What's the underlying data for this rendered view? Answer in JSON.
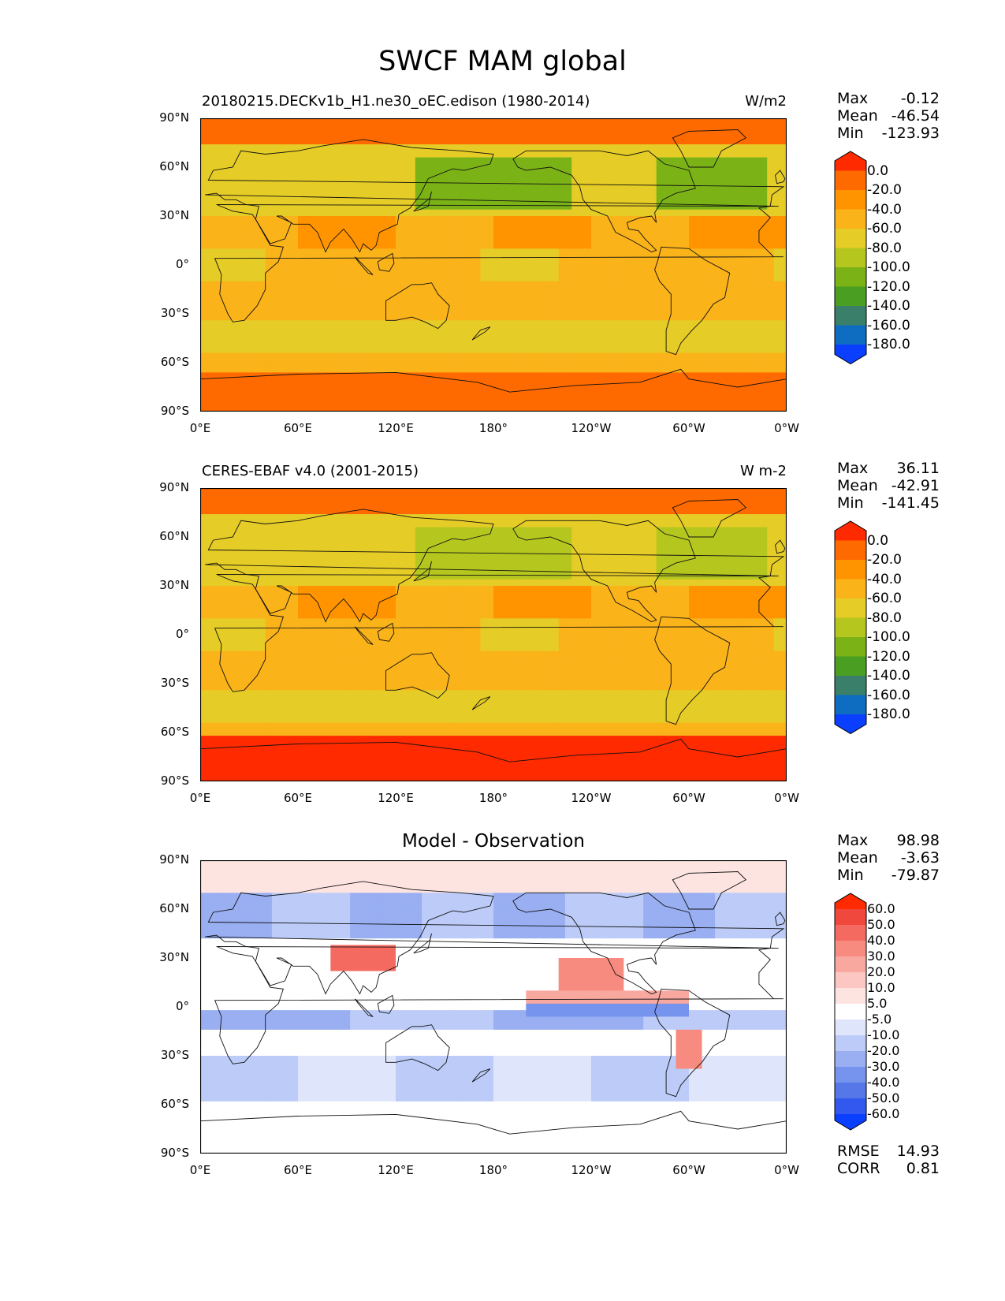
{
  "suptitle": "SWCF MAM global",
  "x_ticks": [
    "0°E",
    "60°E",
    "120°E",
    "180°",
    "120°W",
    "60°W",
    "0°W"
  ],
  "y_ticks": [
    "90°N",
    "60°N",
    "30°N",
    "0°",
    "30°S",
    "60°S",
    "90°S"
  ],
  "chart_data": [
    {
      "type": "heatmap",
      "title_left": "20180215.DECKv1b_H1.ne30_oEC.edison (1980-2014)",
      "title_right": "W/m2",
      "title_center": "",
      "stats": [
        {
          "label": "Max",
          "value": "-0.12"
        },
        {
          "label": "Mean",
          "value": "-46.54"
        },
        {
          "label": "Min",
          "value": "-123.93"
        }
      ],
      "colorbar": {
        "labels": [
          "0.0",
          "-20.0",
          "-40.0",
          "-60.0",
          "-80.0",
          "-100.0",
          "-120.0",
          "-140.0",
          "-160.0",
          "-180.0"
        ],
        "colors": [
          "#ff2a00",
          "#ff6a00",
          "#ff9400",
          "#fbb31a",
          "#e6cc26",
          "#b5c71f",
          "#7bb317",
          "#4a9e22",
          "#3a7f6a",
          "#0e6cc1",
          "#0a3fff"
        ]
      },
      "xlim": [
        0,
        360
      ],
      "ylim": [
        -90,
        90
      ]
    },
    {
      "type": "heatmap",
      "title_left": "CERES-EBAF v4.0 (2001-2015)",
      "title_right": "W m-2",
      "title_center": "",
      "stats": [
        {
          "label": "Max",
          "value": "36.11"
        },
        {
          "label": "Mean",
          "value": "-42.91"
        },
        {
          "label": "Min",
          "value": "-141.45"
        }
      ],
      "colorbar": {
        "labels": [
          "0.0",
          "-20.0",
          "-40.0",
          "-60.0",
          "-80.0",
          "-100.0",
          "-120.0",
          "-140.0",
          "-160.0",
          "-180.0"
        ],
        "colors": [
          "#ff2a00",
          "#ff6a00",
          "#ff9400",
          "#fbb31a",
          "#e6cc26",
          "#b5c71f",
          "#7bb317",
          "#4a9e22",
          "#3a7f6a",
          "#0e6cc1",
          "#0a3fff"
        ]
      },
      "xlim": [
        0,
        360
      ],
      "ylim": [
        -90,
        90
      ]
    },
    {
      "type": "heatmap",
      "title_left": "",
      "title_right": "",
      "title_center": "Model - Observation",
      "stats": [
        {
          "label": "Max",
          "value": "98.98"
        },
        {
          "label": "Mean",
          "value": "-3.63"
        },
        {
          "label": "Min",
          "value": "-79.87"
        }
      ],
      "colorbar": {
        "labels": [
          "60.0",
          "50.0",
          "40.0",
          "30.0",
          "20.0",
          "10.0",
          "5.0",
          "-5.0",
          "-10.0",
          "-20.0",
          "-30.0",
          "-40.0",
          "-50.0",
          "-60.0"
        ],
        "colors": [
          "#ff2a00",
          "#f0483c",
          "#f46a60",
          "#f78b80",
          "#f9a8a0",
          "#fcc7c2",
          "#fde4e1",
          "#ffffff",
          "#dfe6fb",
          "#bccbf7",
          "#99aff2",
          "#7693ed",
          "#5577e8",
          "#3358f0",
          "#0a3fff"
        ]
      },
      "metrics": [
        {
          "label": "RMSE",
          "value": "14.93"
        },
        {
          "label": "CORR",
          "value": "0.81"
        }
      ],
      "xlim": [
        0,
        360
      ],
      "ylim": [
        -90,
        90
      ]
    }
  ]
}
